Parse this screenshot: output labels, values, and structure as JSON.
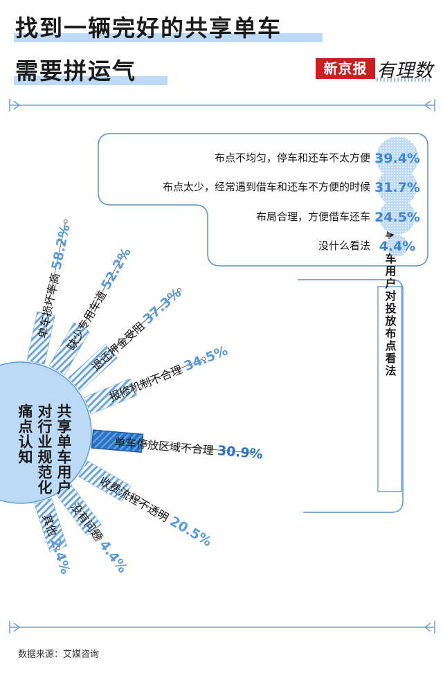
{
  "title": {
    "line1": "找到一辆完好的共享单车",
    "line2": "需要拼运气"
  },
  "logo": {
    "brand": "新京报",
    "sub": "有理数"
  },
  "source": "数据来源：艾媒咨询",
  "colors": {
    "accent": "#5a9bd8",
    "light": "#bcd9f5",
    "hatch": "#6ea6dc",
    "dark_bar": "#2a72c4",
    "frame": "#6f9fd0"
  },
  "chart_data": [
    {
      "type": "bar",
      "layout": "radial",
      "center_label": [
        "共享单车用户",
        "对行业规范化",
        "痛点认知"
      ],
      "categories": [
        "单车损坏率高",
        "缺少专用车道",
        "退还押金受阻",
        "报修机制不合理",
        "单车停放区域不合理",
        "收费流程不透明",
        "没有问题",
        "其他"
      ],
      "values": [
        58.2,
        52.2,
        37.3,
        34.5,
        30.9,
        20.5,
        4.4,
        2.4
      ],
      "value_labels": [
        "58.2%",
        "52.2%",
        "37.3%",
        "34.5%",
        "30.9%",
        "20.5%",
        "4.4%",
        "2.4%"
      ],
      "highlight": "单车停放区域不合理"
    },
    {
      "type": "bar",
      "title": "共享单车用户对投放布点看法",
      "categories": [
        "布点不均匀，停车和还车不太方便",
        "布点太少，经常遇到借车和还车不方便的时候",
        "布局合理，方便借车还车",
        "没什么看法"
      ],
      "values": [
        39.4,
        31.7,
        24.5,
        4.4
      ],
      "value_labels": [
        "39.4%",
        "31.7%",
        "24.5%",
        "4.4%"
      ]
    }
  ]
}
